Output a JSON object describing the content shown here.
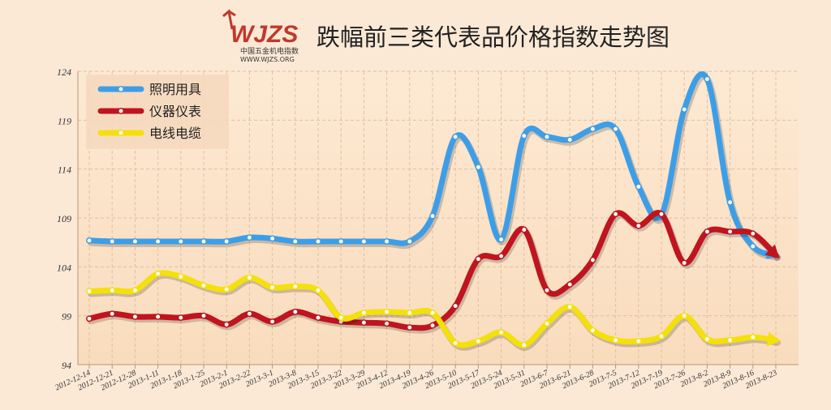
{
  "brand": {
    "logo_text": "WJZS",
    "logo_cn": "中国五金机电指数",
    "logo_url": "WWW.WJZS.ORG",
    "color": "#c0392b"
  },
  "chart_data": {
    "type": "line",
    "title": "跌幅前三类代表品价格指数走势图",
    "xlabel": "",
    "ylabel": "",
    "ylim": [
      94,
      124
    ],
    "yticks": [
      94,
      99,
      104,
      109,
      114,
      119,
      124
    ],
    "grid": true,
    "legend_position": "top-left",
    "x": [
      "2012-12-14",
      "2012-12-21",
      "2012-12-28",
      "2013-1-11",
      "2013-1-18",
      "2013-1-25",
      "2013-2-1",
      "2013-2-22",
      "2013-3-1",
      "2013-3-8",
      "2013-3-15",
      "2013-3-22",
      "2013-3-29",
      "2013-4-12",
      "2013-4-19",
      "2013-4-26",
      "2013-5-10",
      "2013-5-17",
      "2013-5-24",
      "2013-5-31",
      "2013-6-7",
      "2013-6-21",
      "2013-6-28",
      "2013-7-5",
      "2013-7-12",
      "2013-7-19",
      "2013-7-26",
      "2013-8-2",
      "2013-8-9",
      "2013-8-16",
      "2013-8-23"
    ],
    "series": [
      {
        "name": "照明用具",
        "color": "#3d9ee8",
        "values": [
          106.7,
          106.6,
          106.6,
          106.6,
          106.6,
          106.6,
          106.6,
          107.0,
          106.9,
          106.6,
          106.6,
          106.6,
          106.6,
          106.6,
          106.6,
          109.2,
          117.3,
          114.2,
          106.8,
          117.4,
          117.3,
          117.0,
          118.1,
          118.1,
          112.2,
          109.3,
          120.1,
          123.2,
          110.6,
          106.1,
          105.2
        ]
      },
      {
        "name": "仪器仪表",
        "color": "#c0141e",
        "values": [
          98.7,
          99.2,
          98.9,
          98.9,
          98.8,
          99.0,
          98.1,
          99.2,
          98.4,
          99.4,
          98.8,
          98.4,
          98.3,
          98.2,
          97.8,
          98.0,
          100.0,
          104.8,
          105.1,
          107.8,
          101.6,
          102.2,
          104.7,
          109.4,
          108.2,
          109.4,
          104.4,
          107.6,
          107.6,
          107.4,
          105.2
        ]
      },
      {
        "name": "电线电缆",
        "color": "#f4e00a",
        "values": [
          101.5,
          101.6,
          101.6,
          103.3,
          103.0,
          102.1,
          101.7,
          102.9,
          101.9,
          102.0,
          101.6,
          98.8,
          99.3,
          99.4,
          99.3,
          99.3,
          96.2,
          96.4,
          97.3,
          96.0,
          98.2,
          99.9,
          97.5,
          96.5,
          96.4,
          96.9,
          99.0,
          96.6,
          96.5,
          96.8,
          96.5
        ]
      }
    ]
  }
}
